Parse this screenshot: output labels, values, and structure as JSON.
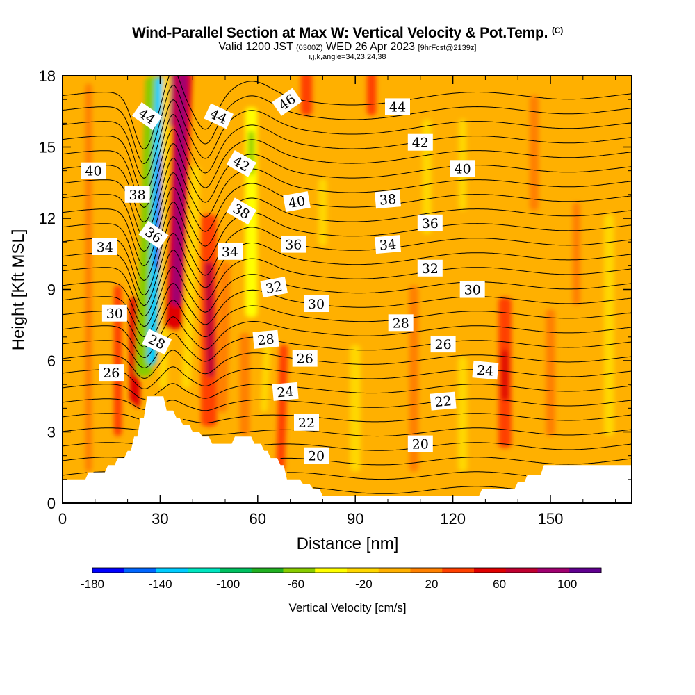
{
  "chart_data": {
    "type": "heatmap",
    "title": "Wind-Parallel Section at Max W: Vertical Velocity & Pot.Temp.",
    "title_mark": "(C)",
    "subtitle_pre": "Valid 1200 JST",
    "subtitle_utc": "(0300Z)",
    "subtitle_date": "WED 26 Apr 2023",
    "subtitle_fcst": "[9hrFcst@2139z]",
    "params": "i,j,k,angle=34,23,24,38",
    "xlabel": "Distance [nm]",
    "ylabel": "Height [Kft MSL]",
    "xlim": [
      0,
      175
    ],
    "ylim": [
      0,
      18
    ],
    "x_ticks": [
      "0",
      "30",
      "60",
      "90",
      "120",
      "150"
    ],
    "y_ticks": [
      "0",
      "3",
      "6",
      "9",
      "12",
      "15",
      "18"
    ],
    "colorbar": {
      "label": "Vertical Velocity [cm/s]",
      "range": [
        -180,
        120
      ],
      "tick_labels": [
        "-180",
        "-140",
        "-100",
        "-60",
        "-20",
        "20",
        "60",
        "100"
      ],
      "colors": [
        "#0000ff",
        "#0066ff",
        "#00ccff",
        "#00e5c0",
        "#00c060",
        "#22b022",
        "#88cc00",
        "#ffff00",
        "#ffd700",
        "#ffb000",
        "#ff8000",
        "#ff4000",
        "#e00000",
        "#c00030",
        "#a00070",
        "#600090"
      ]
    },
    "terrain_profile": [
      [
        0,
        1.0
      ],
      [
        7,
        1.0
      ],
      [
        8,
        1.3
      ],
      [
        13,
        1.3
      ],
      [
        14,
        1.6
      ],
      [
        16,
        1.6
      ],
      [
        17,
        1.9
      ],
      [
        19,
        1.9
      ],
      [
        20,
        2.2
      ],
      [
        21,
        2.2
      ],
      [
        22,
        2.8
      ],
      [
        23,
        2.8
      ],
      [
        24,
        3.6
      ],
      [
        25,
        3.6
      ],
      [
        26,
        4.5
      ],
      [
        31,
        4.5
      ],
      [
        32,
        3.9
      ],
      [
        34,
        3.9
      ],
      [
        35,
        3.6
      ],
      [
        36,
        3.6
      ],
      [
        37,
        3.3
      ],
      [
        39,
        3.3
      ],
      [
        40,
        3.0
      ],
      [
        42,
        3.0
      ],
      [
        43,
        2.8
      ],
      [
        45,
        2.8
      ],
      [
        46,
        2.5
      ],
      [
        52,
        2.5
      ],
      [
        53,
        2.8
      ],
      [
        58,
        2.8
      ],
      [
        59,
        2.5
      ],
      [
        61,
        2.5
      ],
      [
        62,
        2.2
      ],
      [
        63,
        2.2
      ],
      [
        64,
        1.9
      ],
      [
        66,
        1.9
      ],
      [
        67,
        1.6
      ],
      [
        68,
        1.6
      ],
      [
        69,
        1.0
      ],
      [
        73,
        1.0
      ],
      [
        74,
        0.8
      ],
      [
        76,
        0.8
      ],
      [
        77,
        0.6
      ],
      [
        79,
        0.6
      ],
      [
        80,
        0.3
      ],
      [
        128,
        0.3
      ],
      [
        129,
        0.6
      ],
      [
        139,
        0.6
      ],
      [
        140,
        0.9
      ],
      [
        142,
        0.9
      ],
      [
        143,
        1.2
      ],
      [
        147,
        1.2
      ],
      [
        148,
        1.6
      ],
      [
        175,
        1.6
      ]
    ],
    "wind_cells": [
      {
        "x": 8,
        "y": 1.5,
        "x2": 8,
        "y2": 17.5,
        "w": 0.95,
        "v": 22
      },
      {
        "x": 17,
        "y": 3.0,
        "x2": 17,
        "y2": 9.0,
        "w": 1.1,
        "v": 28
      },
      {
        "x": 22,
        "y": 4.4,
        "x2": 22,
        "y2": 8.5,
        "w": 1.3,
        "v": 48
      },
      {
        "x": 23,
        "y": 4.2,
        "x2": 23,
        "y2": 5.0,
        "w": 0.8,
        "v": 58
      },
      {
        "x": 25,
        "y": 5.5,
        "x2": 28,
        "y2": 17.8,
        "w": 2.3,
        "v": -60
      },
      {
        "x": 27.5,
        "y": 6.0,
        "x2": 30,
        "y2": 17.8,
        "w": 1.3,
        "v": -130
      },
      {
        "x": 29,
        "y": 10.0,
        "x2": 30,
        "y2": 14.5,
        "w": 0.7,
        "v": -155
      },
      {
        "x": 31,
        "y": 5.0,
        "x2": 32,
        "y2": 17.8,
        "w": 1.2,
        "v": -25
      },
      {
        "x": 34,
        "y": 7.5,
        "x2": 37,
        "y2": 18,
        "w": 2.6,
        "v": 45
      },
      {
        "x": 35,
        "y": 8.5,
        "x2": 37,
        "y2": 18,
        "w": 1.4,
        "v": 85
      },
      {
        "x": 33.5,
        "y": 16.0,
        "x2": 34,
        "y2": 18,
        "w": 0.6,
        "v": 100
      },
      {
        "x": 38,
        "y": 5.0,
        "x2": 41,
        "y2": 14.0,
        "w": 1.3,
        "v": -25
      },
      {
        "x": 45,
        "y": 3.4,
        "x2": 45,
        "y2": 12.0,
        "w": 2.2,
        "v": 40
      },
      {
        "x": 45.5,
        "y": 5.5,
        "x2": 45,
        "y2": 10.0,
        "w": 1.2,
        "v": 65
      },
      {
        "x": 49,
        "y": 4.0,
        "x2": 50,
        "y2": 10.0,
        "w": 1.5,
        "v": 10
      },
      {
        "x": 58,
        "y": 8.0,
        "x2": 58,
        "y2": 16.5,
        "w": 1.7,
        "v": -45
      },
      {
        "x": 58,
        "y": 14.0,
        "x2": 58,
        "y2": 15.5,
        "w": 0.8,
        "v": -60
      },
      {
        "x": 56,
        "y": 3.0,
        "x2": 56,
        "y2": 7.0,
        "w": 1.4,
        "v": 24
      },
      {
        "x": 62,
        "y": 4.0,
        "x2": 63,
        "y2": 7.0,
        "w": 1.0,
        "v": -12
      },
      {
        "x": 67,
        "y": 1.5,
        "x2": 68,
        "y2": 6.5,
        "w": 1.2,
        "v": 30
      },
      {
        "x": 75,
        "y": 16.5,
        "x2": 75,
        "y2": 18,
        "w": 1.6,
        "v": 32
      },
      {
        "x": 80,
        "y": 11.0,
        "x2": 80,
        "y2": 13.5,
        "w": 1.2,
        "v": -12
      },
      {
        "x": 90,
        "y": 1.5,
        "x2": 90,
        "y2": 6.5,
        "w": 1.5,
        "v": -12
      },
      {
        "x": 95,
        "y": 16.5,
        "x2": 95,
        "y2": 18,
        "w": 1.3,
        "v": 30
      },
      {
        "x": 108,
        "y": 1.5,
        "x2": 108,
        "y2": 9.0,
        "w": 1.3,
        "v": 22
      },
      {
        "x": 112,
        "y": 11.5,
        "x2": 112,
        "y2": 16.0,
        "w": 1.3,
        "v": -12
      },
      {
        "x": 123,
        "y": 1.5,
        "x2": 123,
        "y2": 6.0,
        "w": 1.3,
        "v": -12
      },
      {
        "x": 123,
        "y": 12.5,
        "x2": 123,
        "y2": 16.0,
        "w": 1.1,
        "v": -12
      },
      {
        "x": 136,
        "y": 2.5,
        "x2": 136,
        "y2": 8.5,
        "w": 1.8,
        "v": 38
      },
      {
        "x": 136,
        "y": 4.5,
        "x2": 136,
        "y2": 6.3,
        "w": 1.0,
        "v": 60
      },
      {
        "x": 145,
        "y": 12.5,
        "x2": 145,
        "y2": 17.0,
        "w": 1.3,
        "v": 22
      },
      {
        "x": 150,
        "y": 3.0,
        "x2": 150,
        "y2": 8.0,
        "w": 1.3,
        "v": 22
      },
      {
        "x": 158,
        "y": 8.5,
        "x2": 158,
        "y2": 12.5,
        "w": 1.1,
        "v": 22
      },
      {
        "x": 168,
        "y": 3.0,
        "x2": 168,
        "y2": 12.0,
        "w": 1.4,
        "v": -12
      }
    ],
    "theta_contours": {
      "min": 19,
      "max": 47,
      "step": 1
    },
    "contour_labels": [
      {
        "text": "44",
        "x": 26,
        "y": 16.3,
        "rot": 35
      },
      {
        "text": "44",
        "x": 48,
        "y": 16.3,
        "rot": 25
      },
      {
        "text": "46",
        "x": 69,
        "y": 16.9,
        "rot": -35
      },
      {
        "text": "44",
        "x": 103,
        "y": 16.7,
        "rot": 0
      },
      {
        "text": "42",
        "x": 55,
        "y": 14.3,
        "rot": 30
      },
      {
        "text": "42",
        "x": 110,
        "y": 15.2,
        "rot": 0
      },
      {
        "text": "40",
        "x": 9.5,
        "y": 14.0,
        "rot": 0
      },
      {
        "text": "40",
        "x": 123,
        "y": 14.1,
        "rot": 0
      },
      {
        "text": "40",
        "x": 72,
        "y": 12.7,
        "rot": -10
      },
      {
        "text": "38",
        "x": 23,
        "y": 13.0,
        "rot": 0
      },
      {
        "text": "38",
        "x": 55,
        "y": 12.3,
        "rot": 30
      },
      {
        "text": "38",
        "x": 100,
        "y": 12.8,
        "rot": -5
      },
      {
        "text": "36",
        "x": 28,
        "y": 11.3,
        "rot": 35
      },
      {
        "text": "36",
        "x": 71,
        "y": 10.9,
        "rot": 0
      },
      {
        "text": "36",
        "x": 113,
        "y": 11.8,
        "rot": 0
      },
      {
        "text": "34",
        "x": 13,
        "y": 10.8,
        "rot": 0
      },
      {
        "text": "34",
        "x": 51.5,
        "y": 10.6,
        "rot": 0
      },
      {
        "text": "34",
        "x": 100,
        "y": 10.9,
        "rot": -5
      },
      {
        "text": "32",
        "x": 65,
        "y": 9.1,
        "rot": -10
      },
      {
        "text": "32",
        "x": 113,
        "y": 9.9,
        "rot": 0
      },
      {
        "text": "30",
        "x": 16,
        "y": 8.0,
        "rot": 0
      },
      {
        "text": "30",
        "x": 78,
        "y": 8.4,
        "rot": 0
      },
      {
        "text": "30",
        "x": 126,
        "y": 9.0,
        "rot": 0
      },
      {
        "text": "28",
        "x": 29,
        "y": 6.8,
        "rot": 25
      },
      {
        "text": "28",
        "x": 62.5,
        "y": 6.9,
        "rot": -5
      },
      {
        "text": "28",
        "x": 104,
        "y": 7.6,
        "rot": 0
      },
      {
        "text": "26",
        "x": 15,
        "y": 5.5,
        "rot": 0
      },
      {
        "text": "26",
        "x": 74.5,
        "y": 6.1,
        "rot": 0
      },
      {
        "text": "26",
        "x": 117,
        "y": 6.7,
        "rot": 0
      },
      {
        "text": "24",
        "x": 68.5,
        "y": 4.7,
        "rot": -5
      },
      {
        "text": "24",
        "x": 130,
        "y": 5.6,
        "rot": 5
      },
      {
        "text": "22",
        "x": 75,
        "y": 3.4,
        "rot": 0
      },
      {
        "text": "22",
        "x": 117,
        "y": 4.3,
        "rot": -5
      },
      {
        "text": "20",
        "x": 78,
        "y": 2.0,
        "rot": 0
      },
      {
        "text": "20",
        "x": 110,
        "y": 2.5,
        "rot": 0
      }
    ]
  }
}
